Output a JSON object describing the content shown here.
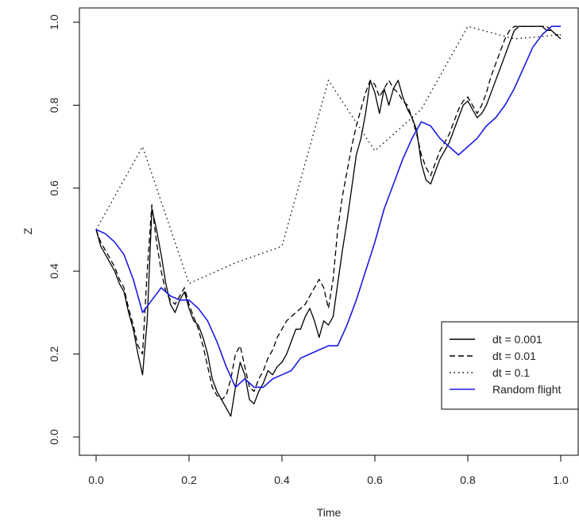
{
  "chart_data": {
    "type": "line",
    "title": "",
    "xlabel": "Time",
    "ylabel": "Z",
    "xlim": [
      0.0,
      1.0
    ],
    "ylim": [
      0.0,
      1.0
    ],
    "xticks": [
      "0.0",
      "0.2",
      "0.4",
      "0.6",
      "0.8",
      "1.0"
    ],
    "yticks": [
      "0.0",
      "0.2",
      "0.4",
      "0.6",
      "0.8",
      "1.0"
    ],
    "grid": false,
    "legend": {
      "position": "bottom-right",
      "entries": [
        {
          "label": "dt =  0.001",
          "style": "solid",
          "color": "#000000"
        },
        {
          "label": "dt =  0.01",
          "style": "dashed",
          "color": "#000000"
        },
        {
          "label": "dt =  0.1",
          "style": "dotted",
          "color": "#000000"
        },
        {
          "label": "Random flight",
          "style": "solid",
          "color": "#1a1ae6"
        }
      ]
    },
    "series": [
      {
        "name": "dt =  0.001",
        "style": "solid",
        "color": "#000000",
        "x": [
          0.0,
          0.01,
          0.02,
          0.03,
          0.04,
          0.05,
          0.06,
          0.07,
          0.08,
          0.09,
          0.1,
          0.11,
          0.12,
          0.13,
          0.14,
          0.15,
          0.16,
          0.17,
          0.18,
          0.19,
          0.2,
          0.21,
          0.22,
          0.23,
          0.24,
          0.25,
          0.26,
          0.27,
          0.28,
          0.29,
          0.3,
          0.31,
          0.32,
          0.33,
          0.34,
          0.35,
          0.36,
          0.37,
          0.38,
          0.39,
          0.4,
          0.41,
          0.42,
          0.43,
          0.44,
          0.45,
          0.46,
          0.47,
          0.48,
          0.49,
          0.5,
          0.51,
          0.52,
          0.53,
          0.54,
          0.55,
          0.56,
          0.57,
          0.58,
          0.59,
          0.6,
          0.61,
          0.62,
          0.63,
          0.64,
          0.65,
          0.66,
          0.67,
          0.68,
          0.69,
          0.7,
          0.71,
          0.72,
          0.73,
          0.74,
          0.75,
          0.76,
          0.77,
          0.78,
          0.79,
          0.8,
          0.81,
          0.82,
          0.83,
          0.84,
          0.85,
          0.86,
          0.87,
          0.88,
          0.89,
          0.9,
          0.91,
          0.92,
          0.93,
          0.94,
          0.95,
          0.96,
          0.97,
          0.98,
          0.99,
          1.0
        ],
        "y": [
          0.5,
          0.46,
          0.44,
          0.42,
          0.4,
          0.37,
          0.35,
          0.3,
          0.26,
          0.2,
          0.15,
          0.28,
          0.55,
          0.5,
          0.44,
          0.37,
          0.32,
          0.3,
          0.33,
          0.35,
          0.31,
          0.28,
          0.27,
          0.24,
          0.2,
          0.14,
          0.11,
          0.09,
          0.07,
          0.05,
          0.12,
          0.18,
          0.15,
          0.09,
          0.08,
          0.11,
          0.13,
          0.16,
          0.15,
          0.17,
          0.18,
          0.2,
          0.23,
          0.26,
          0.26,
          0.29,
          0.31,
          0.28,
          0.24,
          0.28,
          0.27,
          0.29,
          0.37,
          0.45,
          0.52,
          0.6,
          0.68,
          0.72,
          0.78,
          0.86,
          0.83,
          0.78,
          0.84,
          0.8,
          0.84,
          0.86,
          0.82,
          0.79,
          0.77,
          0.74,
          0.66,
          0.62,
          0.61,
          0.64,
          0.67,
          0.69,
          0.71,
          0.74,
          0.77,
          0.8,
          0.81,
          0.79,
          0.77,
          0.78,
          0.8,
          0.83,
          0.86,
          0.89,
          0.92,
          0.95,
          0.98,
          0.99,
          0.99,
          0.99,
          0.99,
          0.99,
          0.99,
          0.98,
          0.98,
          0.97,
          0.96
        ]
      },
      {
        "name": "dt =  0.01",
        "style": "dashed",
        "color": "#000000",
        "x": [
          0.0,
          0.01,
          0.02,
          0.03,
          0.04,
          0.05,
          0.06,
          0.07,
          0.08,
          0.09,
          0.1,
          0.11,
          0.12,
          0.13,
          0.14,
          0.15,
          0.16,
          0.17,
          0.18,
          0.19,
          0.2,
          0.21,
          0.22,
          0.23,
          0.24,
          0.25,
          0.26,
          0.27,
          0.28,
          0.29,
          0.3,
          0.31,
          0.32,
          0.33,
          0.34,
          0.35,
          0.36,
          0.37,
          0.38,
          0.39,
          0.4,
          0.41,
          0.42,
          0.43,
          0.44,
          0.45,
          0.46,
          0.47,
          0.48,
          0.49,
          0.5,
          0.51,
          0.52,
          0.53,
          0.54,
          0.55,
          0.56,
          0.57,
          0.58,
          0.59,
          0.6,
          0.61,
          0.62,
          0.63,
          0.64,
          0.65,
          0.66,
          0.67,
          0.68,
          0.69,
          0.7,
          0.71,
          0.72,
          0.73,
          0.74,
          0.75,
          0.76,
          0.77,
          0.78,
          0.79,
          0.8,
          0.81,
          0.82,
          0.83,
          0.84,
          0.85,
          0.86,
          0.87,
          0.88,
          0.89,
          0.9,
          0.91,
          0.92,
          0.93,
          0.94,
          0.95,
          0.96,
          0.97,
          0.98,
          0.99,
          1.0
        ],
        "y": [
          0.5,
          0.47,
          0.45,
          0.43,
          0.41,
          0.38,
          0.36,
          0.31,
          0.27,
          0.22,
          0.2,
          0.4,
          0.56,
          0.47,
          0.4,
          0.35,
          0.33,
          0.32,
          0.34,
          0.36,
          0.32,
          0.29,
          0.26,
          0.22,
          0.17,
          0.12,
          0.1,
          0.09,
          0.1,
          0.14,
          0.2,
          0.22,
          0.17,
          0.12,
          0.11,
          0.14,
          0.16,
          0.19,
          0.21,
          0.24,
          0.26,
          0.28,
          0.29,
          0.3,
          0.31,
          0.32,
          0.34,
          0.36,
          0.38,
          0.36,
          0.31,
          0.38,
          0.5,
          0.58,
          0.64,
          0.7,
          0.75,
          0.79,
          0.83,
          0.86,
          0.85,
          0.82,
          0.84,
          0.86,
          0.84,
          0.83,
          0.81,
          0.8,
          0.77,
          0.73,
          0.68,
          0.65,
          0.63,
          0.66,
          0.69,
          0.71,
          0.73,
          0.76,
          0.79,
          0.81,
          0.82,
          0.8,
          0.78,
          0.8,
          0.83,
          0.87,
          0.9,
          0.93,
          0.96,
          0.98,
          0.99,
          0.99,
          0.99,
          0.99,
          0.99,
          0.99,
          0.99,
          0.99,
          0.98,
          0.97,
          0.97
        ]
      },
      {
        "name": "dt =  0.1",
        "style": "dotted",
        "color": "#000000",
        "x": [
          0.0,
          0.1,
          0.2,
          0.3,
          0.4,
          0.5,
          0.6,
          0.7,
          0.8,
          0.9,
          1.0
        ],
        "y": [
          0.5,
          0.7,
          0.37,
          0.42,
          0.46,
          0.86,
          0.69,
          0.79,
          0.99,
          0.96,
          0.97
        ]
      },
      {
        "name": "Random flight",
        "style": "solid",
        "color": "#1a1ae6",
        "x": [
          0.0,
          0.02,
          0.04,
          0.06,
          0.08,
          0.1,
          0.12,
          0.14,
          0.16,
          0.18,
          0.2,
          0.22,
          0.24,
          0.26,
          0.28,
          0.3,
          0.32,
          0.34,
          0.36,
          0.38,
          0.4,
          0.42,
          0.44,
          0.46,
          0.48,
          0.5,
          0.52,
          0.54,
          0.56,
          0.58,
          0.6,
          0.62,
          0.64,
          0.66,
          0.68,
          0.7,
          0.72,
          0.74,
          0.76,
          0.78,
          0.8,
          0.82,
          0.84,
          0.86,
          0.88,
          0.9,
          0.92,
          0.94,
          0.96,
          0.98,
          1.0
        ],
        "y": [
          0.5,
          0.49,
          0.47,
          0.44,
          0.38,
          0.3,
          0.33,
          0.36,
          0.34,
          0.33,
          0.33,
          0.31,
          0.28,
          0.23,
          0.17,
          0.12,
          0.14,
          0.12,
          0.12,
          0.14,
          0.15,
          0.16,
          0.19,
          0.2,
          0.21,
          0.22,
          0.22,
          0.27,
          0.33,
          0.4,
          0.47,
          0.55,
          0.61,
          0.67,
          0.72,
          0.76,
          0.75,
          0.72,
          0.7,
          0.68,
          0.7,
          0.72,
          0.75,
          0.77,
          0.8,
          0.84,
          0.89,
          0.94,
          0.97,
          0.99,
          0.99
        ]
      }
    ]
  }
}
